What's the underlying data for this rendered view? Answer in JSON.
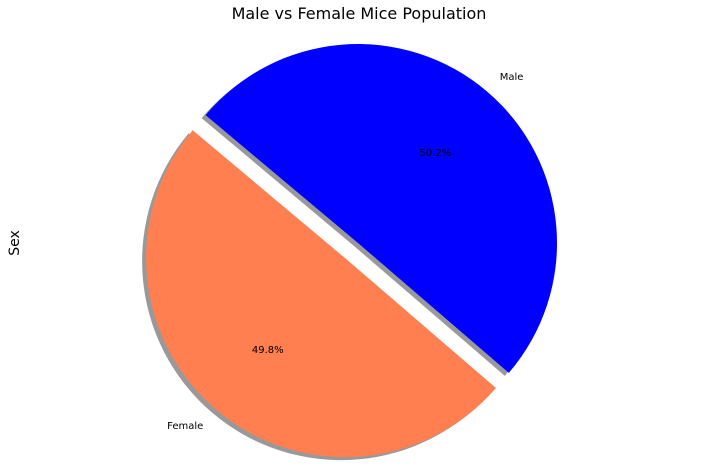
{
  "chart_data": {
    "type": "pie",
    "title": "Male vs Female Mice Population",
    "ylabel": "Sex",
    "shadow": true,
    "start_angle_deg": 140,
    "explode": [
      0.1,
      0
    ],
    "slices": [
      {
        "label": "Female",
        "value": 49.8,
        "pct_label": "49.8%",
        "color": "#FF7F50"
      },
      {
        "label": "Male",
        "value": 50.2,
        "pct_label": "50.2%",
        "color": "#0000FF"
      }
    ]
  }
}
